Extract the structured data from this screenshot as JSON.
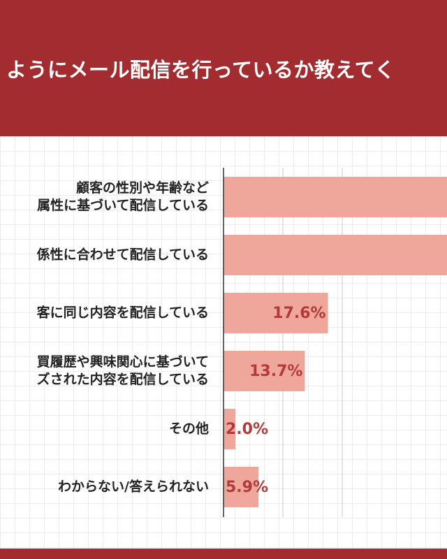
{
  "header": {
    "title": "ようにメール配信を行っているか教えてく"
  },
  "colors": {
    "header_bg": "#a22c2f",
    "bar_fill": "#eea79a",
    "value_label": "#b23a3a",
    "axis_line": "#333333",
    "gridline": "#c8c8c8"
  },
  "chart_data": {
    "type": "bar",
    "orientation": "horizontal",
    "categories": [
      [
        "顧客の性別や年齢など",
        "属性に基づいて配信している"
      ],
      [
        "係性に合わせて配信している"
      ],
      [
        "客に同じ内容を配信している"
      ],
      [
        "買履歴や興味関心に基づいて",
        "ズされた内容を配信している"
      ],
      [
        "その他"
      ],
      [
        "わからない/答えられない"
      ]
    ],
    "values": [
      null,
      null,
      17.6,
      13.7,
      2.0,
      5.9
    ],
    "value_labels": [
      "",
      "",
      "17.6%",
      "13.7%",
      "2.0%",
      "5.9%"
    ],
    "xlim": [
      0,
      40
    ],
    "gridlines_at": [
      10,
      20
    ],
    "grid": true,
    "legend": "none"
  }
}
